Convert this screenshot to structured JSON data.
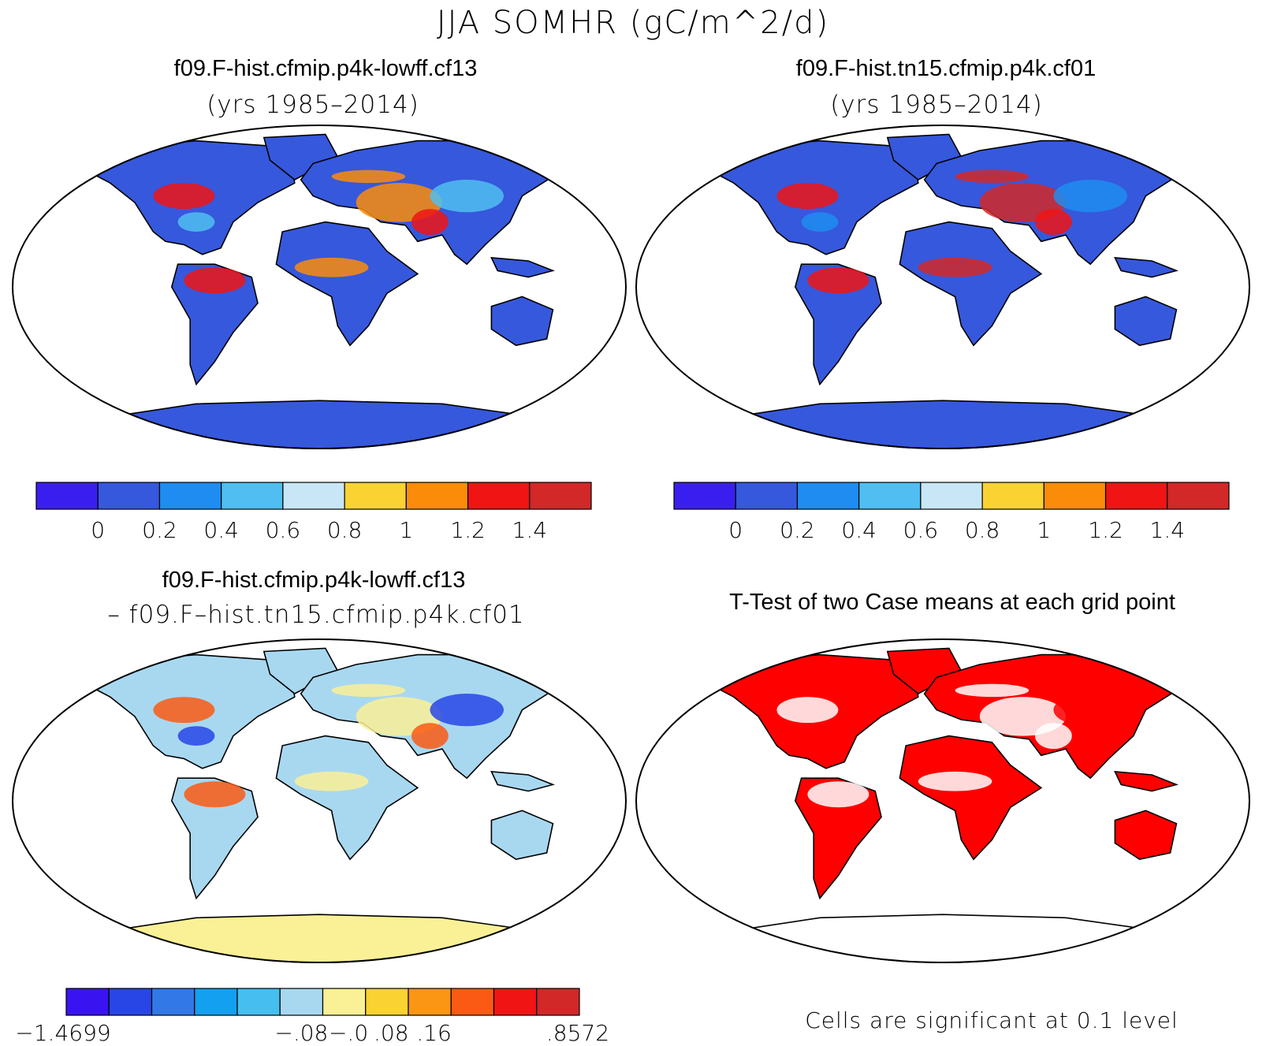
{
  "title": "JJA SOMHR (gC/m^2/d)",
  "panels": [
    {
      "title": "f09.F-hist.cfmip.p4k-lowff.cf13",
      "subtitle": "(yrs 1985–2014)"
    },
    {
      "title": "f09.F-hist.tn15.cfmip.p4k.cf01",
      "subtitle": "(yrs 1985–2014)"
    },
    {
      "title": "f09.F-hist.cfmip.p4k-lowff.cf13",
      "subtitle": "– f09.F–hist.tn15.cfmip.p4k.cf01"
    },
    {
      "title": "T-Test of two Case means at each grid point",
      "subtitle": ""
    }
  ],
  "footnote": "Cells are significant at 0.1 level",
  "chart_data": [
    {
      "type": "heatmap",
      "projection": "robinson",
      "colorbar": {
        "colors": [
          "#3a1ef0",
          "#3658dc",
          "#1e8cf0",
          "#50bef0",
          "#c8e6f5",
          "#fad232",
          "#fa8c0a",
          "#f01414",
          "#d22828"
        ],
        "tick_labels": [
          "0",
          "0.2",
          "0.4",
          "0.6",
          "0.8",
          "1",
          "1.2",
          "1.4"
        ]
      }
    },
    {
      "type": "heatmap",
      "projection": "robinson",
      "colorbar": {
        "colors": [
          "#3a1ef0",
          "#3658dc",
          "#1e8cf0",
          "#50bef0",
          "#c8e6f5",
          "#fad232",
          "#fa8c0a",
          "#f01414",
          "#d22828"
        ],
        "tick_labels": [
          "0",
          "0.2",
          "0.4",
          "0.6",
          "0.8",
          "1",
          "1.2",
          "1.4"
        ]
      }
    },
    {
      "type": "heatmap",
      "projection": "robinson",
      "colorbar": {
        "colors": [
          "#3a14f0",
          "#2846e6",
          "#3278e6",
          "#14a0f0",
          "#46bef0",
          "#a8d8f0",
          "#faf096",
          "#fad232",
          "#fa9614",
          "#fa5a14",
          "#f01414",
          "#d22828"
        ],
        "tick_labels": [
          "−1.4699",
          "",
          "",
          "",
          "",
          "−.08",
          "−.0",
          ".08",
          ".16",
          ".8572"
        ]
      }
    },
    {
      "type": "heatmap",
      "projection": "robinson",
      "significant_color": "#ff0000"
    }
  ]
}
